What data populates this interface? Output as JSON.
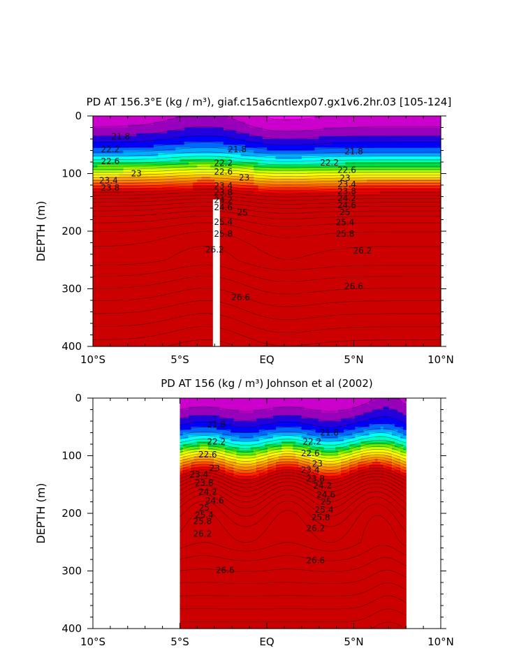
{
  "chart_data": [
    {
      "type": "heatmap",
      "title": "PD AT 156.3°E (kg / m³), giaf.c15a6cntlexp07.gx1v6.2hr.03 [105-124]",
      "ylabel": "DEPTH (m)",
      "xlim": [
        -10,
        10
      ],
      "ylim": [
        400,
        0
      ],
      "x_ticks": [
        -10,
        -5,
        0,
        5,
        10
      ],
      "x_tick_labels": [
        "10°S",
        "5°S",
        "EQ",
        "5°N",
        "10°N"
      ],
      "y_ticks": [
        0,
        100,
        200,
        300,
        400
      ],
      "y_tick_labels": [
        "0",
        "100",
        "200",
        "300",
        "400"
      ],
      "data_extent": [
        -10,
        10
      ],
      "missing_column": [
        -3.1,
        -2.7,
        145,
        400
      ],
      "contour_labels": [
        {
          "text": "21.8",
          "x": -8.4,
          "y": 36
        },
        {
          "text": "21.8",
          "x": -1.7,
          "y": 58
        },
        {
          "text": "21.8",
          "x": 5.0,
          "y": 62
        },
        {
          "text": "22.2",
          "x": -9.0,
          "y": 58
        },
        {
          "text": "22.2",
          "x": -2.5,
          "y": 82
        },
        {
          "text": "22.2",
          "x": 3.6,
          "y": 81
        },
        {
          "text": "22.6",
          "x": -9.0,
          "y": 79
        },
        {
          "text": "22.6",
          "x": -2.5,
          "y": 97
        },
        {
          "text": "22.6",
          "x": 4.6,
          "y": 94
        },
        {
          "text": "23",
          "x": -7.5,
          "y": 100
        },
        {
          "text": "23",
          "x": -1.3,
          "y": 107
        },
        {
          "text": "23",
          "x": 4.5,
          "y": 108
        },
        {
          "text": "23.4",
          "x": -9.1,
          "y": 112
        },
        {
          "text": "23.4",
          "x": -2.5,
          "y": 121
        },
        {
          "text": "23.4",
          "x": 4.6,
          "y": 119
        },
        {
          "text": "23.8",
          "x": -9.0,
          "y": 125
        },
        {
          "text": "23.8",
          "x": -2.5,
          "y": 133
        },
        {
          "text": "23.8",
          "x": 4.6,
          "y": 131
        },
        {
          "text": "24.2",
          "x": -2.5,
          "y": 146
        },
        {
          "text": "24.2",
          "x": 4.6,
          "y": 143
        },
        {
          "text": "24.6",
          "x": -2.5,
          "y": 159
        },
        {
          "text": "24.6",
          "x": 4.6,
          "y": 155
        },
        {
          "text": "25",
          "x": -1.4,
          "y": 168
        },
        {
          "text": "25",
          "x": 4.5,
          "y": 167
        },
        {
          "text": "25.4",
          "x": -2.5,
          "y": 184
        },
        {
          "text": "25.4",
          "x": 4.5,
          "y": 185
        },
        {
          "text": "25.8",
          "x": -2.5,
          "y": 205
        },
        {
          "text": "25.8",
          "x": 4.5,
          "y": 205
        },
        {
          "text": "26.2",
          "x": -3.0,
          "y": 232
        },
        {
          "text": "26.2",
          "x": 5.5,
          "y": 234
        },
        {
          "text": "26.6",
          "x": -1.5,
          "y": 315
        },
        {
          "text": "26.6",
          "x": 5.0,
          "y": 296
        }
      ]
    },
    {
      "type": "heatmap",
      "title": "PD AT 156 (kg / m³) Johnson et al (2002)",
      "ylabel": "DEPTH (m)",
      "xlim": [
        -10,
        10
      ],
      "ylim": [
        400,
        0
      ],
      "x_ticks": [
        -10,
        -5,
        0,
        5,
        10
      ],
      "x_tick_labels": [
        "10°S",
        "5°S",
        "EQ",
        "5°N",
        "10°N"
      ],
      "y_ticks": [
        0,
        100,
        200,
        300,
        400
      ],
      "y_tick_labels": [
        "0",
        "100",
        "200",
        "300",
        "400"
      ],
      "data_extent": [
        -5,
        8
      ],
      "contour_labels": [
        {
          "text": "21.8",
          "x": -2.9,
          "y": 46
        },
        {
          "text": "21.8",
          "x": 3.6,
          "y": 60
        },
        {
          "text": "22.2",
          "x": -2.9,
          "y": 76
        },
        {
          "text": "22.2",
          "x": 2.6,
          "y": 76
        },
        {
          "text": "22.6",
          "x": -3.4,
          "y": 98
        },
        {
          "text": "22.6",
          "x": 2.5,
          "y": 96
        },
        {
          "text": "23",
          "x": -3.0,
          "y": 122
        },
        {
          "text": "23",
          "x": 2.9,
          "y": 114
        },
        {
          "text": "23.4",
          "x": -3.9,
          "y": 133
        },
        {
          "text": "23.4",
          "x": 2.5,
          "y": 125
        },
        {
          "text": "23.8",
          "x": -3.6,
          "y": 147
        },
        {
          "text": "23.8",
          "x": 2.8,
          "y": 140
        },
        {
          "text": "24.2",
          "x": -3.4,
          "y": 163
        },
        {
          "text": "24.2",
          "x": 3.2,
          "y": 152
        },
        {
          "text": "24.6",
          "x": -3.0,
          "y": 178
        },
        {
          "text": "24.6",
          "x": 3.4,
          "y": 168
        },
        {
          "text": "25",
          "x": -3.6,
          "y": 190
        },
        {
          "text": "25",
          "x": 3.4,
          "y": 180
        },
        {
          "text": "25.4",
          "x": -3.6,
          "y": 203
        },
        {
          "text": "25.4",
          "x": 3.3,
          "y": 194
        },
        {
          "text": "25.8",
          "x": -3.7,
          "y": 214
        },
        {
          "text": "25.8",
          "x": 3.1,
          "y": 207
        },
        {
          "text": "26.2",
          "x": -3.7,
          "y": 236
        },
        {
          "text": "26.2",
          "x": 2.8,
          "y": 226
        },
        {
          "text": "26.6",
          "x": -2.4,
          "y": 299
        },
        {
          "text": "26.6",
          "x": 2.8,
          "y": 282
        }
      ]
    }
  ],
  "colors": {
    "bands": [
      "#ff00ff",
      "#cc00cc",
      "#9900bb",
      "#2200dd",
      "#0000ff",
      "#0066ff",
      "#00aaff",
      "#00ffff",
      "#00ffbb",
      "#00dd44",
      "#66ee00",
      "#ccff00",
      "#ffff00",
      "#ffdd00",
      "#ffaa00",
      "#ff8800",
      "#ff5500",
      "#ff2200",
      "#ee0000",
      "#cc0000"
    ],
    "missing": "#c0c0c0",
    "ocean_gap": "#ffffff"
  }
}
